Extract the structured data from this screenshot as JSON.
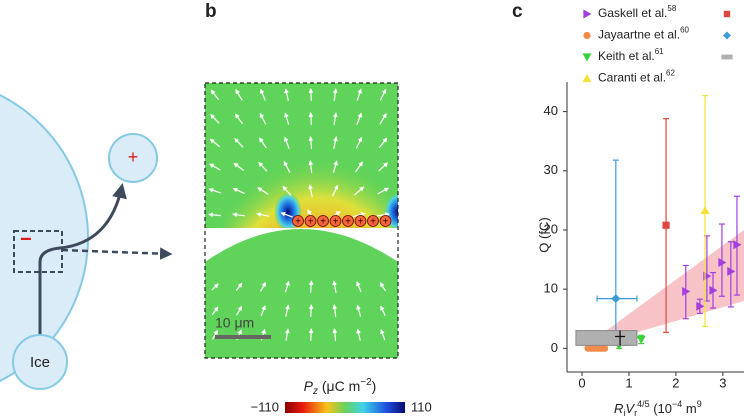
{
  "panel_a": {
    "negative_sign": "−",
    "positive_sign": "+",
    "ice_label": "Ice"
  },
  "panel_b": {
    "label": "b",
    "charge_sign": "+",
    "scale_bar": "10 μm",
    "colorbar": {
      "symbol": "P",
      "symbol_sub": "z",
      "unit": " (μC m",
      "unit_exp": "−2",
      "unit_close": ")",
      "ticks": [
        {
          "value": -110,
          "label": "−110"
        },
        110
      ]
    }
  },
  "chart_data": {
    "type": "scatter",
    "panel_label": "c",
    "ylabel": "Q (fC)",
    "xlabel": [
      "R",
      "i",
      "V",
      "r",
      "4/5",
      " (10",
      "−4",
      " m",
      "9"
    ],
    "xlim": [
      -0.32,
      3.45
    ],
    "ylim": [
      -4,
      45
    ],
    "xticks": [
      0,
      1,
      2,
      3
    ],
    "yticks": [
      0,
      10,
      20,
      30,
      40
    ],
    "band": {
      "color": "#f7b9bd",
      "x": [
        0,
        3.45
      ],
      "upper": [
        0,
        20
      ],
      "lower": [
        0,
        8
      ]
    },
    "series": [
      {
        "name": "Gaskell et al.",
        "ref": "58",
        "color": "#a23fe0",
        "marker": "triangle-right",
        "x": [
          2.21,
          2.51,
          2.66,
          2.79,
          2.98,
          3.17,
          3.3
        ],
        "values": [
          9.6,
          7.1,
          12.2,
          9.8,
          14.5,
          13,
          17.5
        ],
        "ylow": [
          5,
          5.9,
          8,
          6.8,
          8.8,
          7,
          9
        ],
        "yhigh": [
          14,
          8.3,
          19,
          12.8,
          21,
          18,
          25.7
        ]
      },
      {
        "name": "Jayaartne et al.",
        "ref": "60",
        "color": "#f28a4a",
        "marker": "circle",
        "x": [
          0.13,
          0.2,
          0.27,
          0.34,
          0.41,
          0.48
        ],
        "values": [
          0,
          0,
          0,
          0,
          0,
          0
        ]
      },
      {
        "name": "Keith et al.",
        "ref": "61",
        "color": "#3ad13a",
        "marker": "triangle-down",
        "x": [
          0.79,
          0.94,
          1.26
        ],
        "values": [
          0.5,
          1.5,
          1.5
        ],
        "ylow": [
          0,
          0.5,
          0.8
        ],
        "yhigh": [
          1.5,
          2.5,
          2.2
        ]
      },
      {
        "name": "Caranti et al.",
        "ref": "62",
        "color": "#f2e23a",
        "marker": "triangle-up",
        "x": [
          2.62
        ],
        "values": [
          23.3
        ],
        "ylow": [
          3.7
        ],
        "yhigh": [
          42.7
        ]
      },
      {
        "color": "#e0463d",
        "marker": "square",
        "x": [
          1.79
        ],
        "values": [
          20.8
        ],
        "ylow": [
          2.7
        ],
        "yhigh": [
          38.8
        ]
      },
      {
        "color": "#3c9ad6",
        "marker": "diamond",
        "x": [
          0.72
        ],
        "values": [
          8.4
        ],
        "ylow": [
          0.8
        ],
        "yhigh": [
          31.8
        ],
        "xlow": [
          0.32
        ],
        "xhigh": [
          1.17
        ]
      },
      {
        "color": "#b0b0b0",
        "marker": "box",
        "x": [
          0.81
        ],
        "values": [
          2
        ],
        "ylow": [
          0.5
        ],
        "yhigh": [
          3
        ],
        "xlow": [
          -0.13
        ],
        "xhigh": [
          1.17
        ]
      }
    ]
  }
}
